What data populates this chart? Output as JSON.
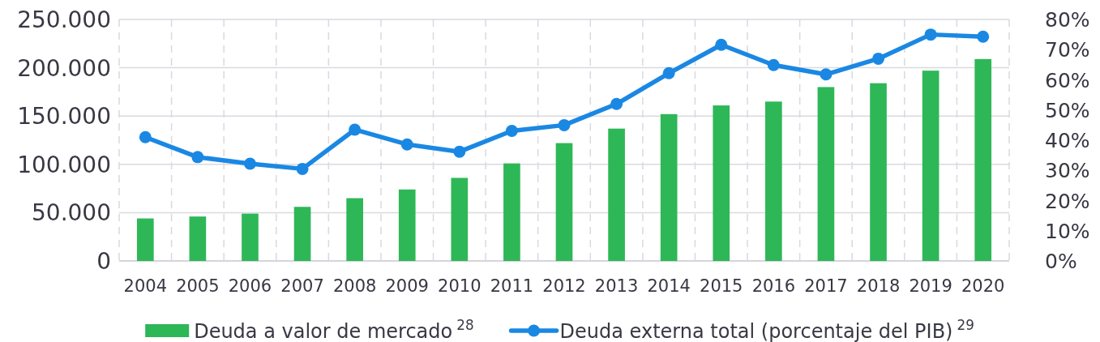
{
  "chart_data": {
    "type": "bar",
    "categories": [
      "2004",
      "2005",
      "2006",
      "2007",
      "2008",
      "2009",
      "2010",
      "2011",
      "2012",
      "2013",
      "2014",
      "2015",
      "2016",
      "2017",
      "2018",
      "2019",
      "2020"
    ],
    "series": [
      {
        "name": "Deuda a valor de mercado$^{28}$",
        "color": "#2eb757",
        "values": [
          44000,
          46000,
          49000,
          56000,
          65000,
          74000,
          86000,
          101000,
          122000,
          137000,
          152000,
          161000,
          165000,
          180000,
          184000,
          197000,
          209000
        ]
      },
      {
        "name": "Deuda externa total (porcentaje del PIB)$^{29}$",
        "type": "line",
        "axis": "y2",
        "color": "#1a88e3",
        "values": [
          41,
          34.4,
          32.2,
          30.5,
          43.5,
          38.6,
          36.2,
          43.1,
          45,
          52,
          62.2,
          71.6,
          64.9,
          61.8,
          67,
          75,
          74.3
        ]
      }
    ],
    "ylim": [
      0,
      250000
    ],
    "yticks": [
      {
        "value": 0,
        "label": "0"
      },
      {
        "value": 50000,
        "label": "50.000"
      },
      {
        "value": 100000,
        "label": "100.000"
      },
      {
        "value": 150000,
        "label": "150.000"
      },
      {
        "value": 200000,
        "label": "200.000"
      },
      {
        "value": 250000,
        "label": "250.000"
      }
    ],
    "y2lim": [
      0,
      80
    ],
    "y2ticks": [
      {
        "value": 0,
        "label": "0%"
      },
      {
        "value": 10,
        "label": "10%"
      },
      {
        "value": 20,
        "label": "20%"
      },
      {
        "value": 30,
        "label": "30%"
      },
      {
        "value": 40,
        "label": "40%"
      },
      {
        "value": 50,
        "label": "50%"
      },
      {
        "value": 60,
        "label": "60%"
      },
      {
        "value": 70,
        "label": "70%"
      },
      {
        "value": 80,
        "label": "80%"
      }
    ],
    "grid": true,
    "legend": "bottom",
    "marker": "circle",
    "line_style": "solid"
  }
}
